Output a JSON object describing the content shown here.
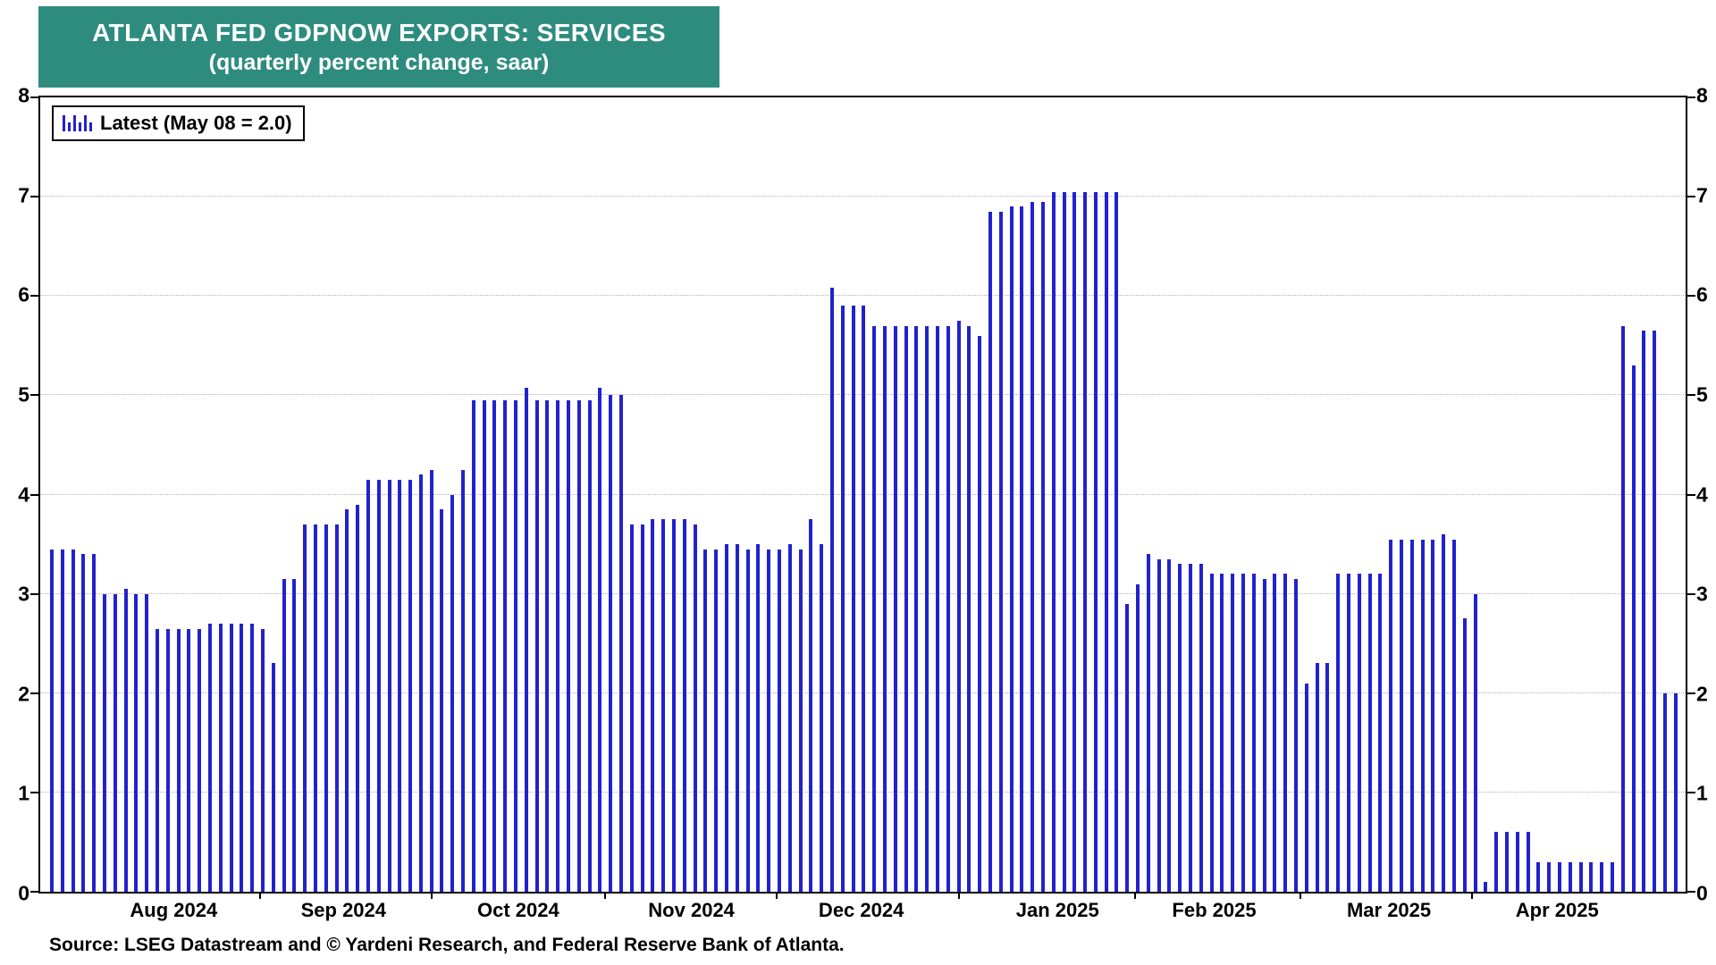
{
  "title": {
    "line1": "ATLANTA FED GDPNOW EXPORTS: SERVICES",
    "line2": "(quarterly percent change, saar)"
  },
  "legend": {
    "label": "Latest (May 08 = 2.0)"
  },
  "source": "Source: LSEG Datastream and © Yardeni Research, and Federal Reserve Bank of Atlanta.",
  "colors": {
    "bar": "#2222CC",
    "title_bg": "#2E8C7E",
    "grid": "#b3b3b3",
    "axis": "#000000"
  },
  "chart_data": {
    "type": "bar",
    "title": "ATLANTA FED GDPNOW EXPORTS: SERVICES",
    "subtitle": "(quarterly percent change, saar)",
    "ylabel": "quarterly percent change, saar",
    "ylim": [
      0,
      8
    ],
    "yticks": [
      0,
      1,
      2,
      3,
      4,
      5,
      6,
      7,
      8
    ],
    "grid": "horizontal dotted lines at integer ticks",
    "legend_position": "top-left",
    "legend": "Latest (May 08 = 2.0)",
    "latest_date": "May 08",
    "latest_value": 2.0,
    "bar_color": "#2222CC",
    "x_axis_labels": [
      {
        "label": "Aug 2024",
        "pct": 8.2
      },
      {
        "label": "Sep 2024",
        "pct": 18.5
      },
      {
        "label": "Oct 2024",
        "pct": 29.1
      },
      {
        "label": "Nov 2024",
        "pct": 39.6
      },
      {
        "label": "Dec 2024",
        "pct": 49.9
      },
      {
        "label": "Jan 2025",
        "pct": 61.8
      },
      {
        "label": "Feb 2025",
        "pct": 71.3
      },
      {
        "label": "Mar 2025",
        "pct": 81.9
      },
      {
        "label": "Apr 2025",
        "pct": 92.1
      }
    ],
    "values": [
      3.45,
      3.45,
      3.45,
      3.4,
      3.4,
      3.0,
      3.0,
      3.05,
      3.0,
      3.0,
      2.65,
      2.65,
      2.65,
      2.65,
      2.65,
      2.7,
      2.7,
      2.7,
      2.7,
      2.7,
      2.65,
      2.3,
      3.15,
      3.15,
      3.7,
      3.7,
      3.7,
      3.7,
      3.85,
      3.9,
      4.15,
      4.15,
      4.15,
      4.15,
      4.15,
      4.2,
      4.25,
      3.85,
      4.0,
      4.25,
      4.95,
      4.95,
      4.95,
      4.95,
      4.95,
      5.08,
      4.95,
      4.95,
      4.95,
      4.95,
      4.95,
      4.95,
      5.08,
      5.0,
      5.0,
      3.7,
      3.7,
      3.75,
      3.75,
      3.75,
      3.75,
      3.7,
      3.45,
      3.45,
      3.5,
      3.5,
      3.45,
      3.5,
      3.45,
      3.45,
      3.5,
      3.45,
      3.75,
      3.5,
      6.08,
      5.9,
      5.9,
      5.9,
      5.7,
      5.7,
      5.7,
      5.7,
      5.7,
      5.7,
      5.7,
      5.7,
      5.75,
      5.7,
      5.6,
      6.85,
      6.85,
      6.9,
      6.9,
      6.95,
      6.95,
      7.05,
      7.05,
      7.05,
      7.05,
      7.05,
      7.05,
      7.05,
      2.9,
      3.1,
      3.4,
      3.35,
      3.35,
      3.3,
      3.3,
      3.3,
      3.2,
      3.2,
      3.2,
      3.2,
      3.2,
      3.15,
      3.2,
      3.2,
      3.15,
      2.1,
      2.3,
      2.3,
      3.2,
      3.2,
      3.2,
      3.2,
      3.2,
      3.55,
      3.55,
      3.55,
      3.55,
      3.55,
      3.6,
      3.55,
      2.75,
      3.0,
      0.1,
      0.6,
      0.6,
      0.6,
      0.6,
      0.3,
      0.3,
      0.3,
      0.3,
      0.3,
      0.3,
      0.3,
      0.3,
      5.7,
      5.3,
      5.65,
      5.65,
      2.0,
      2.0
    ]
  }
}
